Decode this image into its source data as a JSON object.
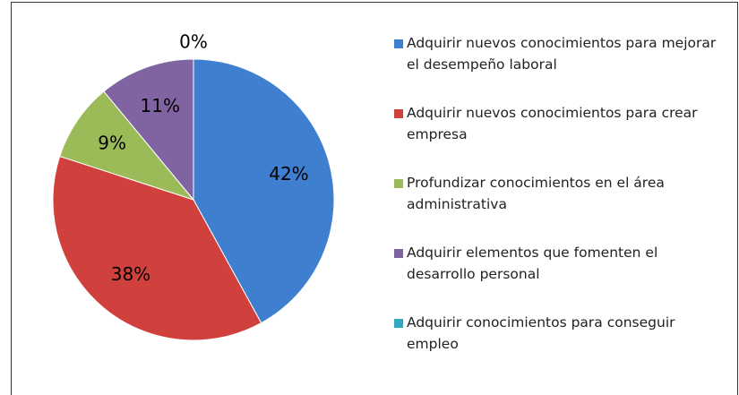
{
  "chart_data": {
    "type": "pie",
    "categories": [
      "Adquirir nuevos conocimientos para mejorar el desempeño laboral",
      "Adquirir nuevos conocimientos para crear empresa",
      "Profundizar conocimientos en el área administrativa",
      "Adquirir elementos que fomenten el desarrollo personal",
      "Adquirir conocimientos para conseguir empleo"
    ],
    "values": [
      42,
      38,
      9,
      11,
      0
    ],
    "value_labels": [
      "42%",
      "38%",
      "9%",
      "11%",
      "0%"
    ],
    "colors": [
      "#3f7fd0",
      "#d0403c",
      "#9bbb59",
      "#8064a2",
      "#2fa8c4"
    ],
    "legend": "right"
  }
}
